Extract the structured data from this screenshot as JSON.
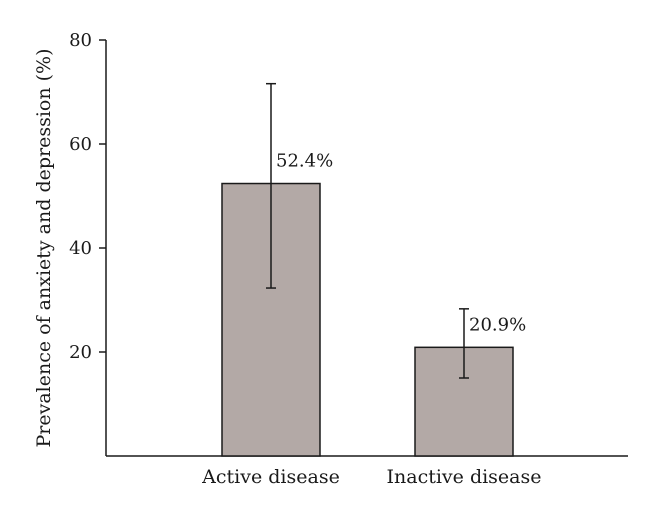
{
  "chart_data": {
    "type": "bar",
    "title": "",
    "xlabel": "",
    "ylabel": "Prevalence of anxiety and depression (%)",
    "ylim": [
      0,
      80
    ],
    "yticks": [
      20,
      40,
      60,
      80
    ],
    "grid": false,
    "categories": [
      "Active disease",
      "Inactive disease"
    ],
    "values": [
      52.4,
      20.9
    ],
    "data_labels": [
      "52.4%",
      "20.9%"
    ],
    "error_low": [
      32.3,
      15.0
    ],
    "error_high": [
      71.6,
      28.3
    ],
    "bar_color": "#b3a9a6"
  }
}
